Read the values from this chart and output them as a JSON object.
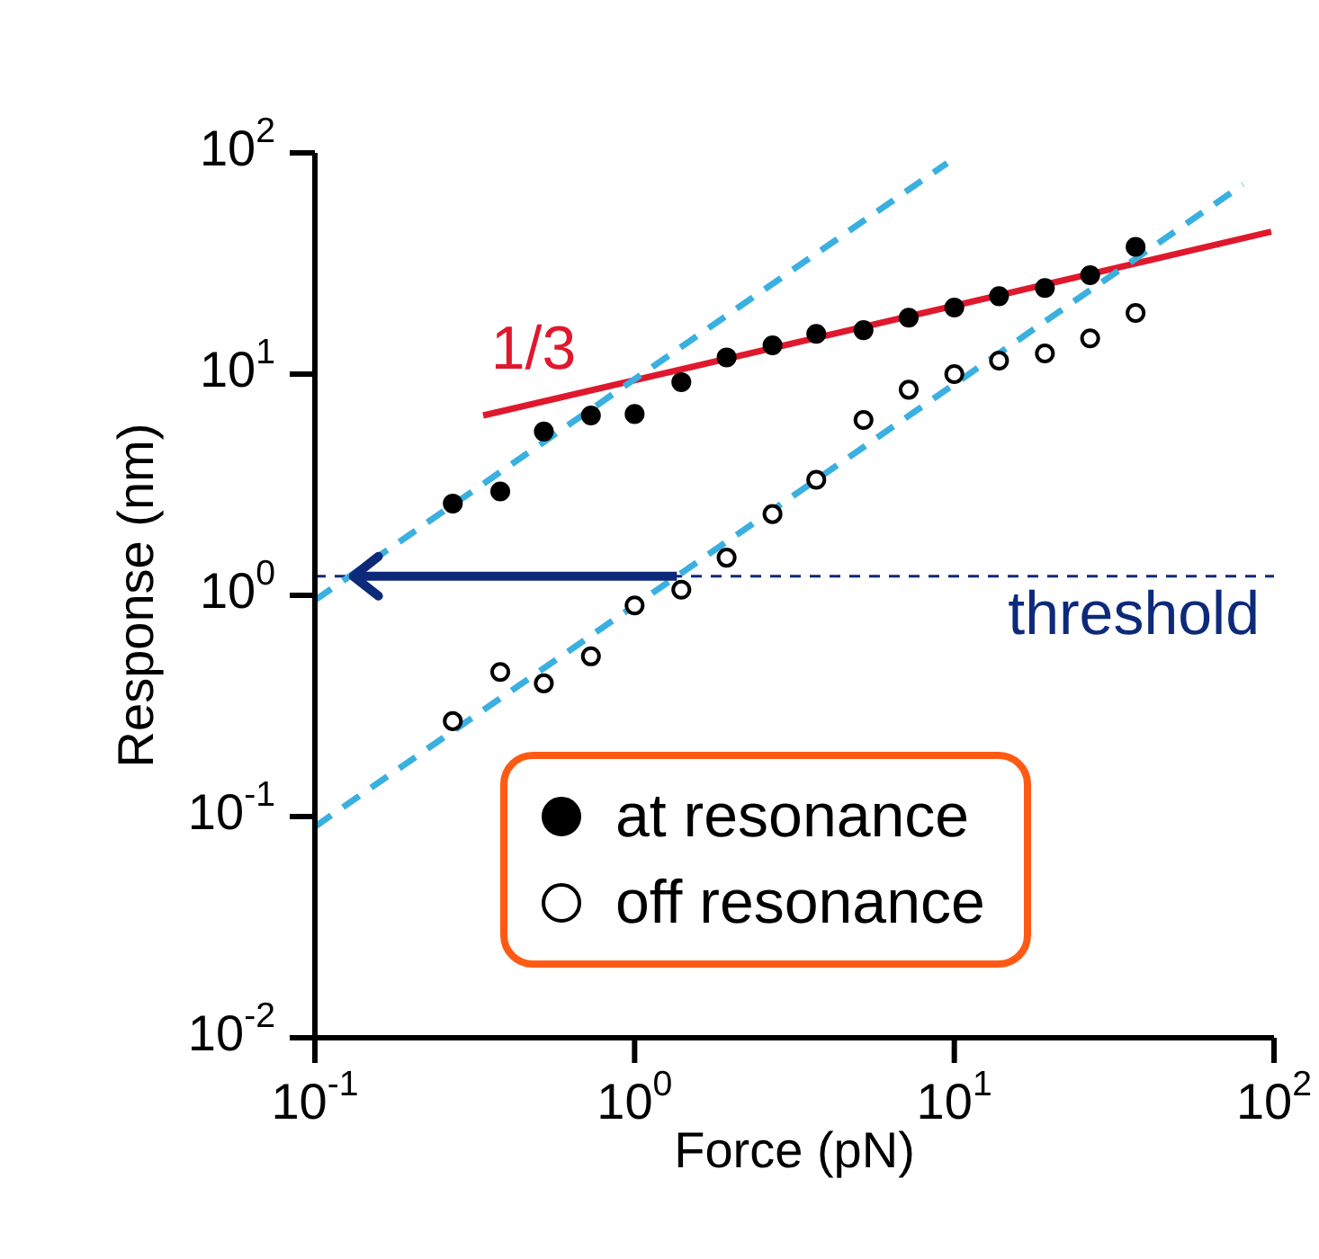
{
  "chart_data": {
    "type": "scatter",
    "xlabel": "Force  (pN)",
    "ylabel": "Response (nm)",
    "log": "xy",
    "marker": "circle",
    "legend": "bottom right",
    "xlim": [
      0.1,
      100
    ],
    "ylim": [
      0.01,
      100
    ],
    "xticks": [
      {
        "value": 0.1,
        "label": "10$^{-1}$"
      },
      {
        "value": 1,
        "label": "10$^{0}$"
      },
      {
        "value": 10,
        "label": "10$^{1}$"
      },
      {
        "value": 100,
        "label": "10$^{2}$"
      }
    ],
    "yticks": [
      {
        "value": 0.01,
        "label": "10$^{-2}$"
      },
      {
        "value": 0.1,
        "label": "10$^{-1}$"
      },
      {
        "value": 1,
        "label": "10$^{0}$"
      },
      {
        "value": 10,
        "label": "10$^{1}$"
      },
      {
        "value": 100,
        "label": "10$^{2}$"
      }
    ],
    "x": [
      0.27,
      0.38,
      0.52,
      0.73,
      1.0,
      1.4,
      1.94,
      2.7,
      3.7,
      5.2,
      7.2,
      10,
      13.8,
      19.2,
      26.6,
      36.9
    ],
    "series": [
      {
        "name": "at resonance",
        "color": "#000000",
        "values": [
          2.6,
          2.95,
          5.5,
          6.5,
          6.6,
          9.2,
          11.9,
          13.5,
          15.2,
          15.8,
          18,
          20,
          22.5,
          24.5,
          28,
          37.6
        ]
      },
      {
        "name": "off resonance",
        "color": "#ffffff",
        "values": [
          0.27,
          0.45,
          0.4,
          0.53,
          0.9,
          1.06,
          1.48,
          2.33,
          3.33,
          6.2,
          8.5,
          10,
          11.5,
          12.4,
          14.5,
          18.9
        ]
      },
      {
        "type": "line",
        "color": "#e0182d",
        "line_style": "solid",
        "marker": "none",
        "x": [
          0.336,
          98
        ],
        "values": [
          6.5,
          44
        ]
      },
      {
        "type": "line",
        "color": "#3ab0e0",
        "line_style": "dashed",
        "marker": "none",
        "x": [
          0.1,
          9.5
        ],
        "values": [
          0.95,
          90
        ]
      },
      {
        "type": "line",
        "color": "#3ab0e0",
        "line_style": "dashed",
        "marker": "none",
        "x": [
          0.1,
          80
        ],
        "values": [
          0.09,
          72
        ]
      }
    ],
    "ref_lines": [
      {
        "axis": "y",
        "value": 1.22,
        "label": "threshold",
        "color": "#0d2a7a",
        "line_style": "dashed"
      }
    ],
    "annotations": [
      "1/3"
    ]
  }
}
